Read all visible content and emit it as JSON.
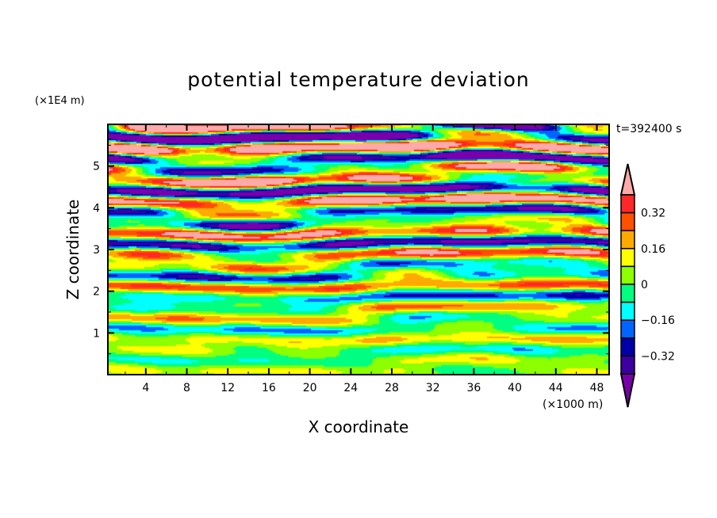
{
  "chart_data": {
    "type": "heatmap",
    "subtype": "filled-contour",
    "title": "potential temperature deviation",
    "xlabel": "X coordinate",
    "ylabel": "Z coordinate",
    "x_unit": "(×1000 m)",
    "y_unit": "(×1E4 m)",
    "time_label": "t=392400 s",
    "xlim": [
      0.3,
      49.2
    ],
    "ylim": [
      0,
      6
    ],
    "xticks": [
      4,
      8,
      12,
      16,
      20,
      24,
      28,
      32,
      36,
      40,
      44,
      48
    ],
    "xticklabels": [
      "4",
      "8",
      "12",
      "16",
      "20",
      "24",
      "28",
      "32",
      "36",
      "40",
      "44",
      "48"
    ],
    "yticks": [
      1,
      2,
      3,
      4,
      5
    ],
    "yticklabels": [
      "1",
      "2",
      "3",
      "4",
      "5"
    ],
    "levels": [
      -0.4,
      -0.32,
      -0.24,
      -0.16,
      -0.08,
      0,
      0.08,
      0.16,
      0.24,
      0.32,
      0.4
    ],
    "colors": [
      "#7800aa",
      "#3c00a0",
      "#0000aa",
      "#0064ff",
      "#00ffff",
      "#00ff80",
      "#8cff00",
      "#ffff00",
      "#ffaa00",
      "#ff5000",
      "#ff2828",
      "#ffaaaa"
    ],
    "colorbar": {
      "tick_values": [
        0.32,
        0.16,
        0,
        -0.16,
        -0.32
      ],
      "tick_labels": [
        "0.32",
        "0.16",
        "0",
        "−0.16",
        "−0.32"
      ],
      "extend": "both"
    }
  }
}
